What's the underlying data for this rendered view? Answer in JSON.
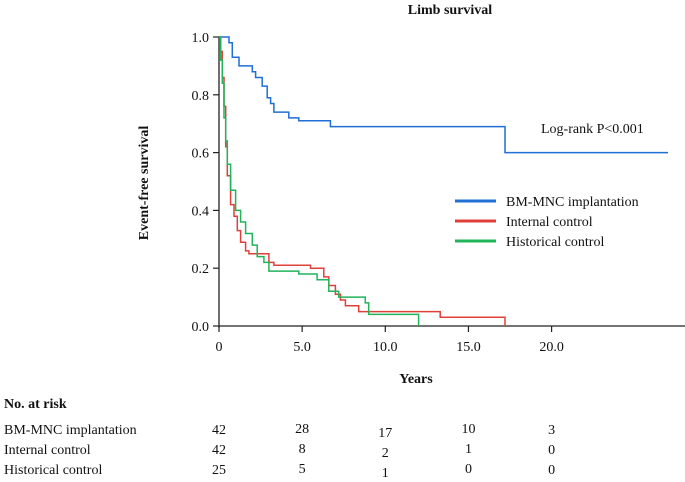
{
  "chart_data": {
    "type": "line",
    "title": "Limb survival",
    "xlabel": "Years",
    "ylabel": "Event-free survival",
    "xlim": [
      0,
      27
    ],
    "ylim": [
      0,
      1.0
    ],
    "x_ticks": [
      "0",
      "5.0",
      "10.0",
      "15.0",
      "20.0"
    ],
    "y_ticks": [
      "0.0",
      "0.2",
      "0.4",
      "0.6",
      "0.8",
      "1.0"
    ],
    "annotation": "Log-rank P<0.001",
    "legend": "right",
    "series": [
      {
        "name": "BM-MNC implantation",
        "color": "#1f6fd4",
        "step_points": [
          [
            0,
            1.0
          ],
          [
            0.6,
            0.98
          ],
          [
            0.8,
            0.93
          ],
          [
            1.2,
            0.9
          ],
          [
            2.0,
            0.88
          ],
          [
            2.2,
            0.86
          ],
          [
            2.6,
            0.83
          ],
          [
            2.9,
            0.79
          ],
          [
            3.1,
            0.77
          ],
          [
            3.3,
            0.74
          ],
          [
            4.2,
            0.72
          ],
          [
            4.8,
            0.71
          ],
          [
            6.7,
            0.69
          ],
          [
            17.2,
            0.69
          ],
          [
            17.2,
            0.6
          ],
          [
            27,
            0.6
          ]
        ]
      },
      {
        "name": "Internal control",
        "color": "#e0403a",
        "step_points": [
          [
            0,
            1.0
          ],
          [
            0.1,
            0.95
          ],
          [
            0.2,
            0.86
          ],
          [
            0.3,
            0.76
          ],
          [
            0.4,
            0.62
          ],
          [
            0.5,
            0.52
          ],
          [
            0.7,
            0.42
          ],
          [
            0.9,
            0.38
          ],
          [
            1.1,
            0.33
          ],
          [
            1.3,
            0.29
          ],
          [
            1.6,
            0.26
          ],
          [
            1.8,
            0.25
          ],
          [
            3.0,
            0.22
          ],
          [
            3.3,
            0.21
          ],
          [
            5.5,
            0.2
          ],
          [
            6.3,
            0.17
          ],
          [
            6.6,
            0.14
          ],
          [
            7.0,
            0.11
          ],
          [
            7.3,
            0.09
          ],
          [
            7.6,
            0.07
          ],
          [
            8.4,
            0.05
          ],
          [
            13.3,
            0.03
          ],
          [
            17.2,
            0.02
          ],
          [
            17.2,
            0.0
          ]
        ]
      },
      {
        "name": "Historical control",
        "color": "#21b45a",
        "step_points": [
          [
            0,
            1.0
          ],
          [
            0.1,
            0.92
          ],
          [
            0.2,
            0.84
          ],
          [
            0.3,
            0.72
          ],
          [
            0.4,
            0.64
          ],
          [
            0.5,
            0.56
          ],
          [
            0.7,
            0.47
          ],
          [
            1.0,
            0.4
          ],
          [
            1.3,
            0.36
          ],
          [
            1.6,
            0.32
          ],
          [
            2.0,
            0.28
          ],
          [
            2.3,
            0.24
          ],
          [
            2.7,
            0.22
          ],
          [
            3.0,
            0.19
          ],
          [
            4.8,
            0.18
          ],
          [
            5.9,
            0.16
          ],
          [
            6.6,
            0.12
          ],
          [
            7.2,
            0.1
          ],
          [
            8.8,
            0.08
          ],
          [
            9.0,
            0.04
          ],
          [
            12.0,
            0.04
          ],
          [
            12.0,
            0.0
          ]
        ]
      }
    ]
  },
  "risk_table": {
    "title": "No. at risk",
    "rows": [
      {
        "label": "BM-MNC implantation",
        "values": [
          "42",
          "28",
          "17",
          "10",
          "3"
        ]
      },
      {
        "label": "Internal control",
        "values": [
          "42",
          "8",
          "2",
          "1",
          "0"
        ]
      },
      {
        "label": "Historical control",
        "values": [
          "25",
          "5",
          "1",
          "0",
          "0"
        ]
      }
    ]
  }
}
